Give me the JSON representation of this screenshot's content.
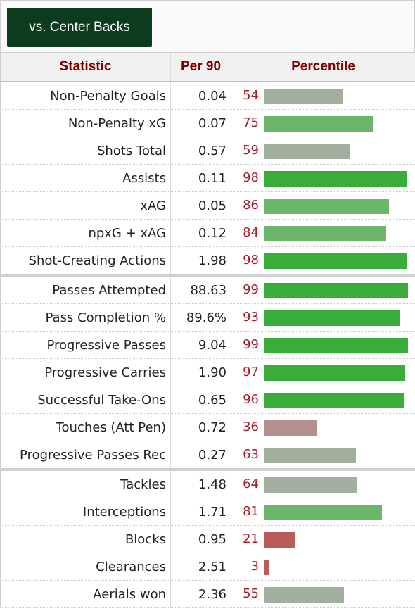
{
  "header": {
    "tab_label": "vs. Center Backs"
  },
  "table": {
    "columns": [
      "Statistic",
      "Per 90",
      "Percentile"
    ],
    "groups": [
      [
        {
          "stat": "Non-Penalty Goals",
          "per90": "0.04",
          "percentile": 54
        },
        {
          "stat": "Non-Penalty xG",
          "per90": "0.07",
          "percentile": 75
        },
        {
          "stat": "Shots Total",
          "per90": "0.57",
          "percentile": 59
        },
        {
          "stat": "Assists",
          "per90": "0.11",
          "percentile": 98
        },
        {
          "stat": "xAG",
          "per90": "0.05",
          "percentile": 86
        },
        {
          "stat": "npxG + xAG",
          "per90": "0.12",
          "percentile": 84
        },
        {
          "stat": "Shot-Creating Actions",
          "per90": "1.98",
          "percentile": 98
        }
      ],
      [
        {
          "stat": "Passes Attempted",
          "per90": "88.63",
          "percentile": 99
        },
        {
          "stat": "Pass Completion %",
          "per90": "89.6%",
          "percentile": 93
        },
        {
          "stat": "Progressive Passes",
          "per90": "9.04",
          "percentile": 99
        },
        {
          "stat": "Progressive Carries",
          "per90": "1.90",
          "percentile": 97
        },
        {
          "stat": "Successful Take-Ons",
          "per90": "0.65",
          "percentile": 96
        },
        {
          "stat": "Touches (Att Pen)",
          "per90": "0.72",
          "percentile": 36
        },
        {
          "stat": "Progressive Passes Rec",
          "per90": "0.27",
          "percentile": 63
        }
      ],
      [
        {
          "stat": "Tackles",
          "per90": "1.48",
          "percentile": 64
        },
        {
          "stat": "Interceptions",
          "per90": "1.71",
          "percentile": 81
        },
        {
          "stat": "Blocks",
          "per90": "0.95",
          "percentile": 21
        },
        {
          "stat": "Clearances",
          "per90": "2.51",
          "percentile": 3
        },
        {
          "stat": "Aerials won",
          "per90": "2.36",
          "percentile": 55
        }
      ]
    ]
  },
  "colors": {
    "high": "#3aac3a",
    "mid_high": "#6cb66c",
    "mid": "#a2ae9e",
    "low": "#b58e8e",
    "very_low": "#b95c5c",
    "percentile_text": "#a2202a",
    "header_text": "#800000",
    "tab_bg": "#0c3b1e"
  }
}
